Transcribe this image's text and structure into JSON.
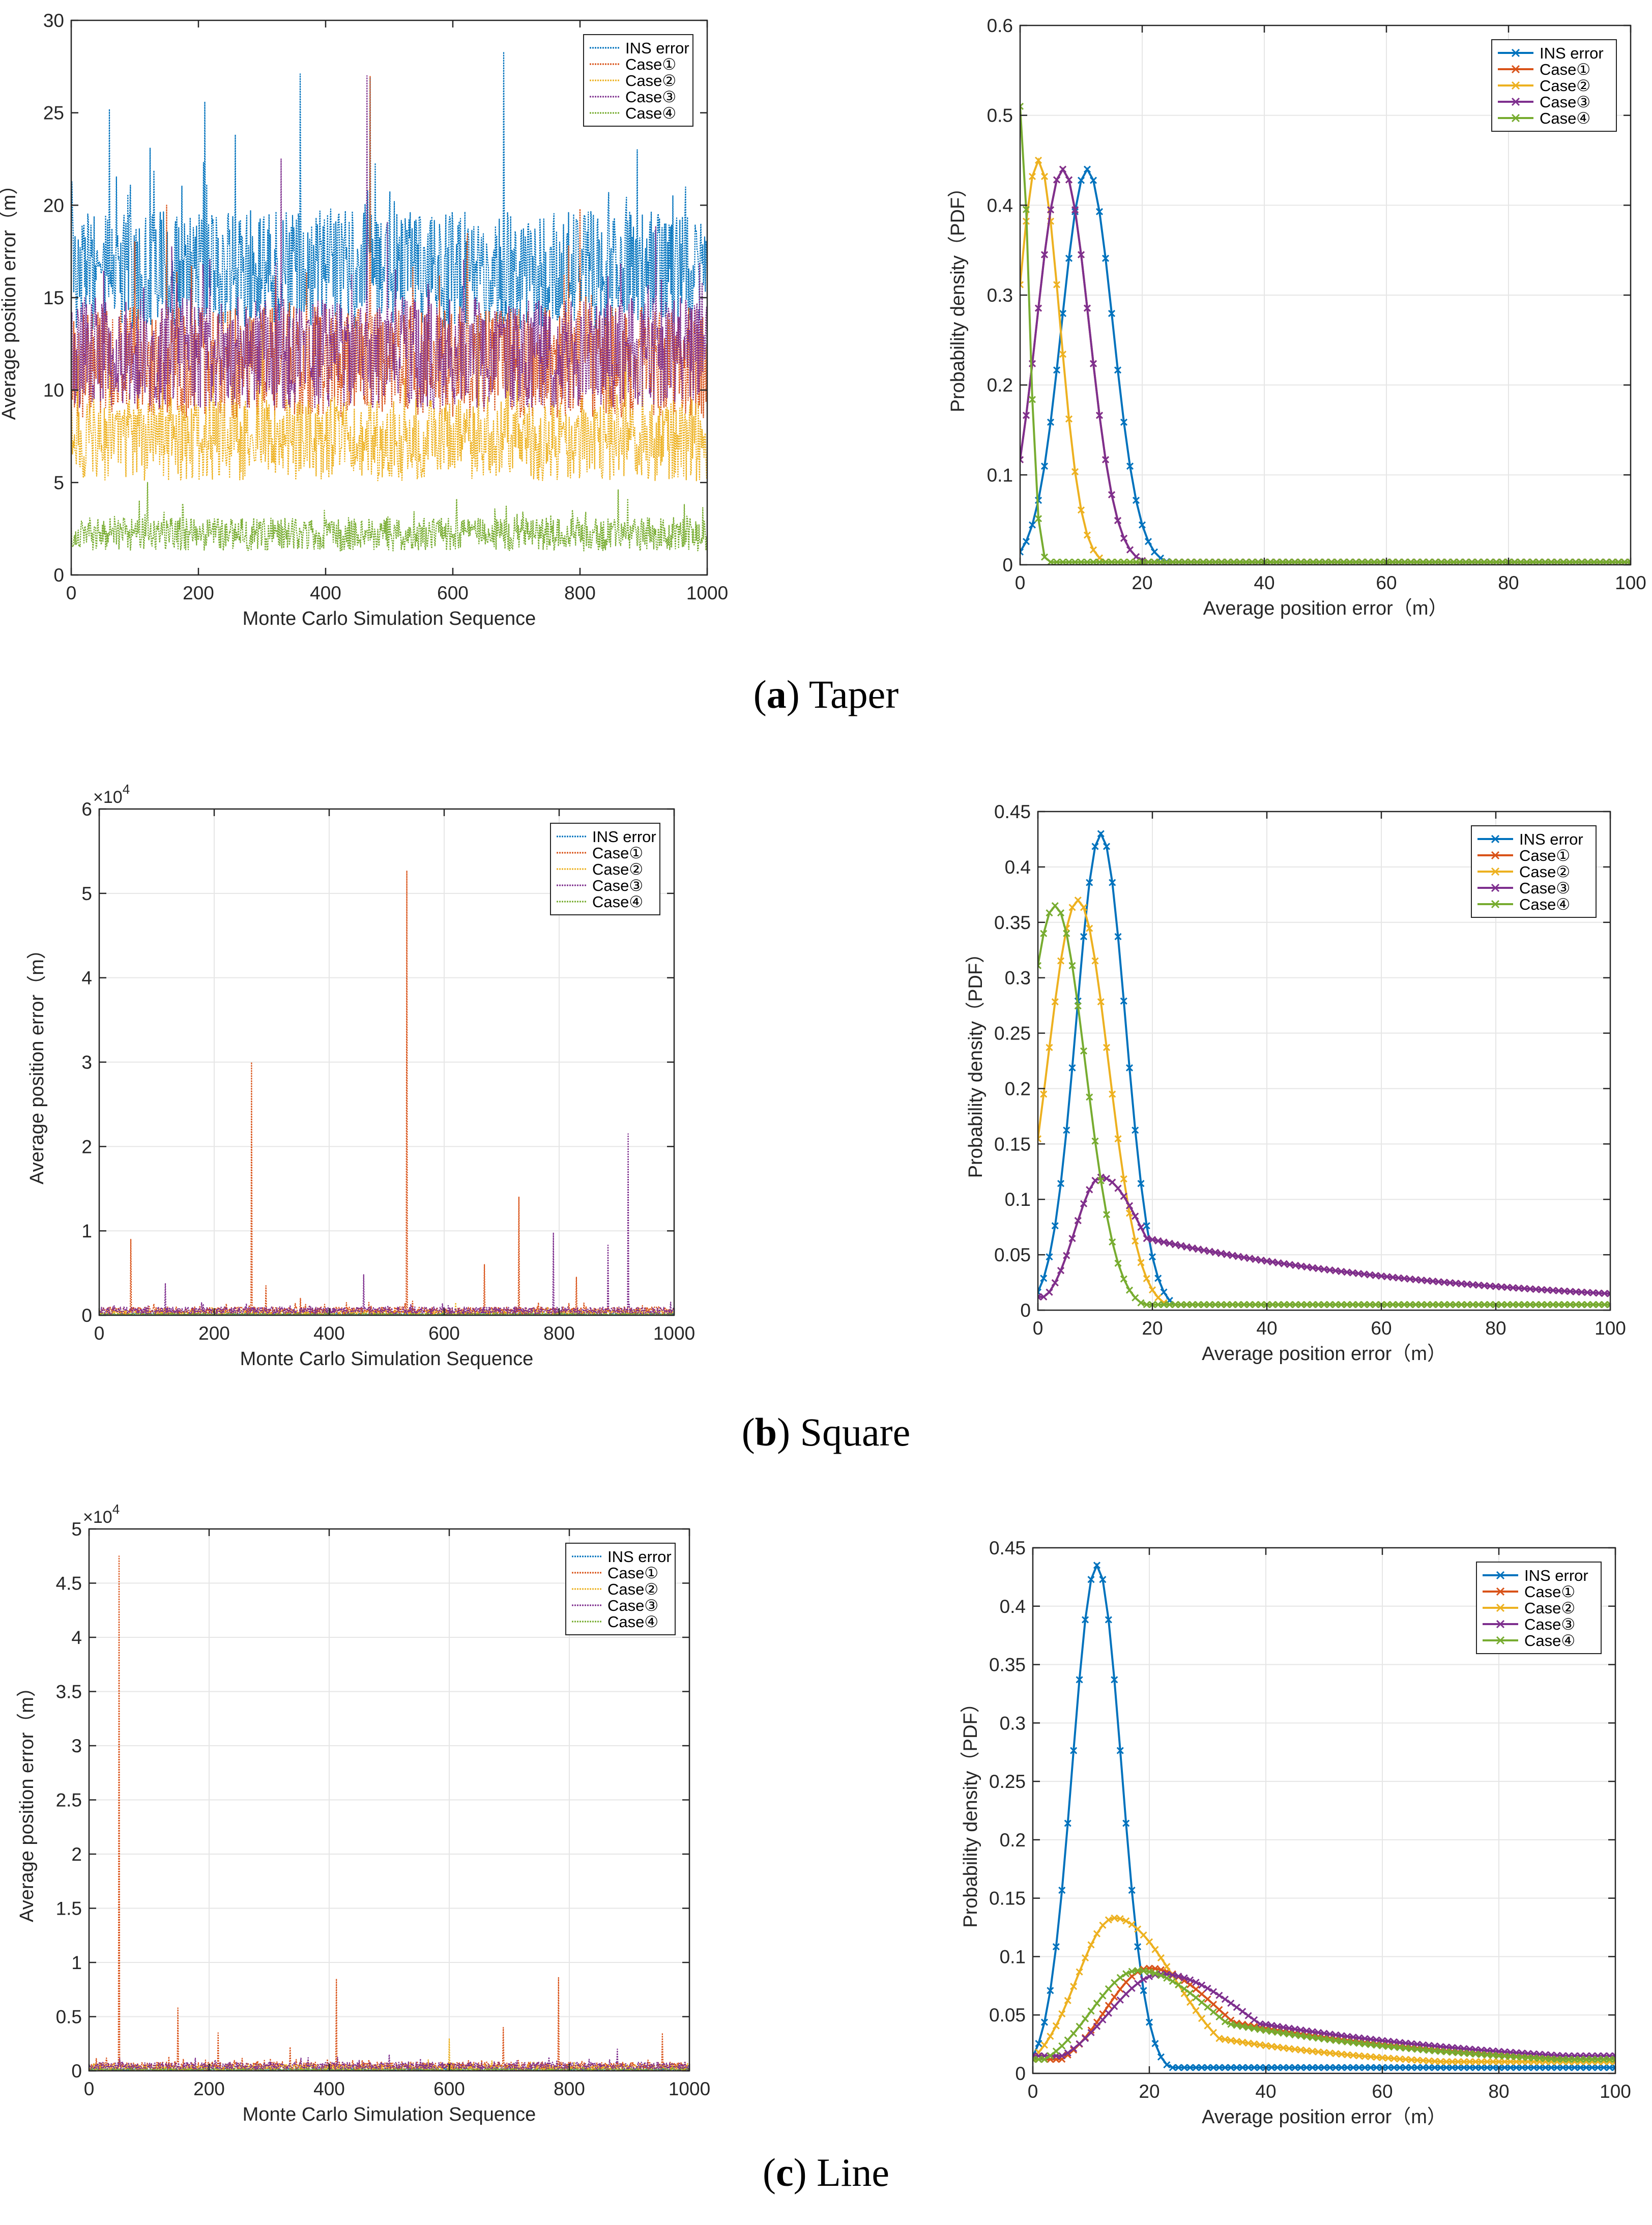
{
  "colors": {
    "ins": "#0072BD",
    "case1": "#D95319",
    "case2": "#EDB120",
    "case3": "#7E2F8E",
    "case4": "#77AC30",
    "grid": "#e6e6e6",
    "axis": "#262626"
  },
  "captions": [
    {
      "letter": "a",
      "open": "(",
      "close": ")",
      "name": "Taper"
    },
    {
      "letter": "b",
      "open": "(",
      "close": ")",
      "name": "Square"
    },
    {
      "letter": "c",
      "open": "(",
      "close": ")",
      "name": "Line"
    }
  ],
  "chart_data": [
    {
      "id": "a-left",
      "type": "line",
      "style": "dotted",
      "xlabel": "Monte Carlo Simulation Sequence",
      "ylabel": "Average position error（m）",
      "xlim": [
        0,
        1000
      ],
      "ylim": [
        0,
        30
      ],
      "xticks": [
        0,
        200,
        400,
        600,
        800,
        1000
      ],
      "yticks": [
        0,
        5,
        10,
        15,
        20,
        25,
        30
      ],
      "exponent": "",
      "grid": false,
      "legend_position": "top-right",
      "series": [
        {
          "name": "INS error",
          "color_key": "ins",
          "level": 16.5,
          "spread": 3.2,
          "spikes": [
            [
              60,
              25.2
            ],
            [
              210,
              25.6
            ],
            [
              360,
              27.1
            ],
            [
              470,
              26.9
            ],
            [
              680,
              28.3
            ],
            [
              890,
              23.0
            ]
          ]
        },
        {
          "name": "Case①",
          "color_key": "case1",
          "level": 11.5,
          "spread": 3.0,
          "spikes": [
            [
              150,
              20.0
            ],
            [
              470,
              27.0
            ],
            [
              800,
              19.8
            ]
          ]
        },
        {
          "name": "Case②",
          "color_key": "case2",
          "level": 7.3,
          "spread": 2.2,
          "spikes": [
            [
              300,
              13.5
            ],
            [
              640,
              14.0
            ]
          ]
        },
        {
          "name": "Case③",
          "color_key": "case3",
          "level": 12.0,
          "spread": 3.0,
          "spikes": [
            [
              465,
              27.0
            ],
            [
              330,
              22.5
            ]
          ]
        },
        {
          "name": "Case④",
          "color_key": "case4",
          "level": 2.2,
          "spread": 0.9,
          "spikes": [
            [
              120,
              5.0
            ],
            [
              860,
              4.6
            ]
          ]
        }
      ]
    },
    {
      "id": "a-right",
      "type": "line",
      "style": "marker-x",
      "xlabel": "Average position error（m）",
      "ylabel": "Probability density（PDF）",
      "xlim": [
        0,
        100
      ],
      "ylim": [
        0,
        0.6
      ],
      "xticks": [
        0,
        20,
        40,
        60,
        80,
        100
      ],
      "yticks": [
        0,
        0.1,
        0.2,
        0.3,
        0.4,
        0.5,
        0.6
      ],
      "grid": true,
      "legend_position": "top-right",
      "series": [
        {
          "name": "INS error",
          "color_key": "ins",
          "model": "gauss",
          "peak": 0.44,
          "mu": 11,
          "sigma": 4.2,
          "tail": 0.003
        },
        {
          "name": "Case①",
          "color_key": "case1",
          "model": "gauss",
          "peak": 0.44,
          "mu": 7,
          "sigma": 4.3,
          "tail": 0.003
        },
        {
          "name": "Case②",
          "color_key": "case2",
          "model": "gauss",
          "peak": 0.45,
          "mu": 3,
          "sigma": 3.5,
          "tail": 0.003
        },
        {
          "name": "Case③",
          "color_key": "case3",
          "model": "gauss",
          "peak": 0.44,
          "mu": 7,
          "sigma": 4.3,
          "tail": 0.003
        },
        {
          "name": "Case④",
          "color_key": "case4",
          "model": "gauss",
          "peak": 0.51,
          "mu": 0,
          "sigma": 1.4,
          "tail": 0.003
        }
      ]
    },
    {
      "id": "b-left",
      "type": "line",
      "style": "dotted",
      "xlabel": "Monte Carlo Simulation Sequence",
      "ylabel": "Average position error（m）",
      "xlim": [
        0,
        1000
      ],
      "ylim": [
        0,
        6
      ],
      "xticks": [
        0,
        200,
        400,
        600,
        800,
        1000
      ],
      "yticks": [
        0,
        1,
        2,
        3,
        4,
        5,
        6
      ],
      "exponent": "4",
      "grid": true,
      "legend_position": "top-right",
      "series": [
        {
          "name": "INS error",
          "color_key": "ins",
          "level": 0.01,
          "spread": 0.01,
          "spikes": []
        },
        {
          "name": "Case①",
          "color_key": "case1",
          "level": 0.05,
          "spread": 0.05,
          "spikes": [
            [
              55,
              0.9
            ],
            [
              265,
              3.0
            ],
            [
              290,
              0.35
            ],
            [
              350,
              0.2
            ],
            [
              535,
              5.27
            ],
            [
              670,
              0.6
            ],
            [
              730,
              1.4
            ],
            [
              830,
              0.45
            ]
          ]
        },
        {
          "name": "Case②",
          "color_key": "case2",
          "level": 0.03,
          "spread": 0.03,
          "spikes": [
            [
              620,
              0.15
            ]
          ]
        },
        {
          "name": "Case③",
          "color_key": "case3",
          "level": 0.05,
          "spread": 0.05,
          "spikes": [
            [
              115,
              0.38
            ],
            [
              460,
              0.48
            ],
            [
              790,
              0.98
            ],
            [
              885,
              0.83
            ],
            [
              920,
              2.15
            ]
          ]
        },
        {
          "name": "Case④",
          "color_key": "case4",
          "level": 0.01,
          "spread": 0.01,
          "spikes": []
        }
      ]
    },
    {
      "id": "b-right",
      "type": "line",
      "style": "marker-x",
      "xlabel": "Average position error（m）",
      "ylabel": "Probability density（PDF）",
      "xlim": [
        0,
        100
      ],
      "ylim": [
        0,
        0.45
      ],
      "xticks": [
        0,
        20,
        40,
        60,
        80,
        100
      ],
      "yticks": [
        0,
        0.05,
        0.1,
        0.15,
        0.2,
        0.25,
        0.3,
        0.35,
        0.4,
        0.45
      ],
      "grid": true,
      "legend_position": "top-right",
      "series": [
        {
          "name": "INS error",
          "color_key": "ins",
          "model": "gauss",
          "peak": 0.43,
          "mu": 11,
          "sigma": 4.3,
          "tail": 0.005
        },
        {
          "name": "Case①",
          "color_key": "case1",
          "model": "skew",
          "peak": 0.12,
          "mu": 11,
          "sigma": 4.5,
          "tail": 0.012,
          "tailLevel": 0.075,
          "tailDecay": 55
        },
        {
          "name": "Case②",
          "color_key": "case2",
          "model": "gauss",
          "peak": 0.37,
          "mu": 7,
          "sigma": 5.3,
          "tail": 0.005
        },
        {
          "name": "Case③",
          "color_key": "case3",
          "model": "skew",
          "peak": 0.12,
          "mu": 11,
          "sigma": 4.5,
          "tail": 0.012,
          "tailLevel": 0.075,
          "tailDecay": 55
        },
        {
          "name": "Case④",
          "color_key": "case4",
          "model": "gauss",
          "peak": 0.365,
          "mu": 3,
          "sigma": 5.3,
          "tail": 0.005
        }
      ]
    },
    {
      "id": "c-left",
      "type": "line",
      "style": "dotted",
      "xlabel": "Monte Carlo Simulation Sequence",
      "ylabel": "Average position error（m）",
      "xlim": [
        0,
        1000
      ],
      "ylim": [
        0,
        5
      ],
      "xticks": [
        0,
        200,
        400,
        600,
        800,
        1000
      ],
      "yticks": [
        0,
        0.5,
        1,
        1.5,
        2,
        2.5,
        3,
        3.5,
        4,
        4.5,
        5
      ],
      "exponent": "4",
      "grid": true,
      "legend_position": "top-right",
      "series": [
        {
          "name": "INS error",
          "color_key": "ins",
          "level": 0.01,
          "spread": 0.01,
          "spikes": []
        },
        {
          "name": "Case①",
          "color_key": "case1",
          "level": 0.04,
          "spread": 0.04,
          "spikes": [
            [
              50,
              4.75
            ],
            [
              148,
              0.58
            ],
            [
              215,
              0.35
            ],
            [
              335,
              0.22
            ],
            [
              412,
              0.85
            ],
            [
              690,
              0.4
            ],
            [
              782,
              0.86
            ],
            [
              955,
              0.35
            ]
          ]
        },
        {
          "name": "Case②",
          "color_key": "case2",
          "level": 0.03,
          "spread": 0.03,
          "spikes": [
            [
              600,
              0.3
            ]
          ]
        },
        {
          "name": "Case③",
          "color_key": "case3",
          "level": 0.04,
          "spread": 0.04,
          "spikes": [
            [
              500,
              0.15
            ],
            [
              880,
              0.2
            ]
          ]
        },
        {
          "name": "Case④",
          "color_key": "case4",
          "level": 0.01,
          "spread": 0.01,
          "spikes": []
        }
      ]
    },
    {
      "id": "c-right",
      "type": "line",
      "style": "marker-x",
      "xlabel": "Average position error（m）",
      "ylabel": "Probability density（PDF）",
      "xlim": [
        0,
        100
      ],
      "ylim": [
        0,
        0.45
      ],
      "xticks": [
        0,
        20,
        40,
        60,
        80,
        100
      ],
      "yticks": [
        0,
        0.05,
        0.1,
        0.15,
        0.2,
        0.25,
        0.3,
        0.35,
        0.4,
        0.45
      ],
      "grid": true,
      "legend_position": "top-right",
      "series": [
        {
          "name": "INS error",
          "color_key": "ins",
          "model": "gauss",
          "peak": 0.435,
          "mu": 11,
          "sigma": 4.2,
          "tail": 0.005
        },
        {
          "name": "Case①",
          "color_key": "case1",
          "model": "skew",
          "peak": 0.09,
          "mu": 20,
          "sigma": 7.5,
          "tail": 0.012,
          "tailLevel": 0.06,
          "tailDecay": 45
        },
        {
          "name": "Case②",
          "color_key": "case2",
          "model": "skew",
          "peak": 0.133,
          "mu": 14,
          "sigma": 6.5,
          "tail": 0.01,
          "tailLevel": 0.05,
          "tailDecay": 35
        },
        {
          "name": "Case③",
          "color_key": "case3",
          "model": "skew",
          "peak": 0.085,
          "mu": 22,
          "sigma": 9,
          "tail": 0.015,
          "tailLevel": 0.06,
          "tailDecay": 50
        },
        {
          "name": "Case④",
          "color_key": "case4",
          "model": "skew",
          "peak": 0.088,
          "mu": 18,
          "sigma": 8,
          "tail": 0.012,
          "tailLevel": 0.06,
          "tailDecay": 45
        }
      ]
    }
  ]
}
